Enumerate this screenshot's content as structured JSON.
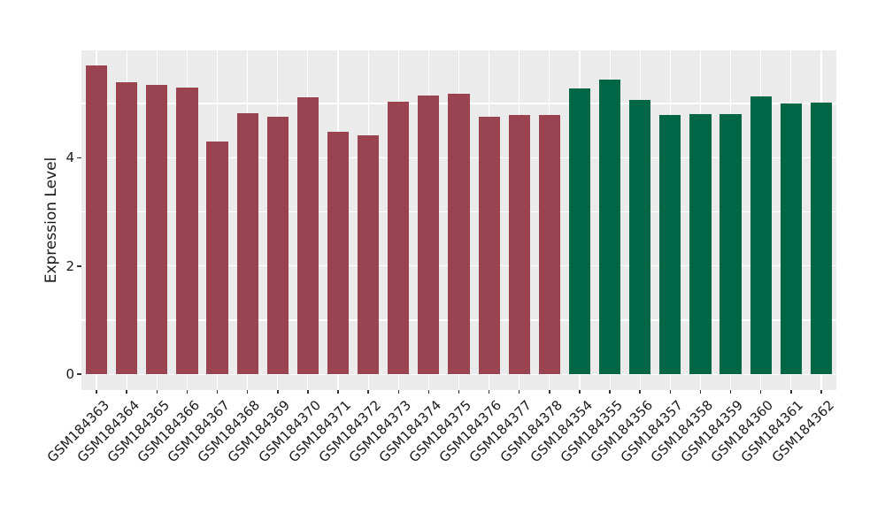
{
  "chart_data": {
    "type": "bar",
    "title": "",
    "xlabel": "",
    "ylabel": "Expression Level",
    "categories": [
      "GSM184363",
      "GSM184364",
      "GSM184365",
      "GSM184366",
      "GSM184367",
      "GSM184368",
      "GSM184369",
      "GSM184370",
      "GSM184371",
      "GSM184372",
      "GSM184373",
      "GSM184374",
      "GSM184375",
      "GSM184376",
      "GSM184377",
      "GSM184378",
      "GSM184354",
      "GSM184355",
      "GSM184356",
      "GSM184357",
      "GSM184358",
      "GSM184359",
      "GSM184360",
      "GSM184361",
      "GSM184362"
    ],
    "values": [
      5.71,
      5.39,
      5.34,
      5.29,
      4.3,
      4.82,
      4.76,
      5.11,
      4.48,
      4.42,
      5.04,
      5.14,
      5.18,
      4.75,
      4.79,
      4.79,
      5.27,
      5.44,
      5.06,
      4.78,
      4.8,
      4.8,
      5.13,
      5.0,
      5.02
    ],
    "bar_colors": [
      "#9A4452",
      "#9A4452",
      "#9A4452",
      "#9A4452",
      "#9A4452",
      "#9A4452",
      "#9A4452",
      "#9A4452",
      "#9A4452",
      "#9A4452",
      "#9A4452",
      "#9A4452",
      "#9A4452",
      "#9A4452",
      "#9A4452",
      "#9A4452",
      "#006646",
      "#006646",
      "#006646",
      "#006646",
      "#006646",
      "#006646",
      "#006646",
      "#006646",
      "#006646"
    ],
    "group_colors": {
      "left_group_red": "#9A4452",
      "right_group_green": "#006646"
    },
    "ylim": [
      -0.29,
      5.98
    ],
    "yticks": [
      {
        "value": 0,
        "label": "0"
      },
      {
        "value": 2,
        "label": "2"
      },
      {
        "value": 4,
        "label": "4"
      }
    ],
    "grid_y": [
      0,
      1,
      2,
      3,
      4,
      5
    ],
    "grid": "on",
    "legend": "none",
    "panel_bg": "#EBEBEB",
    "grid_color": "#FFFFFF",
    "bar_width_frac": 0.71
  }
}
